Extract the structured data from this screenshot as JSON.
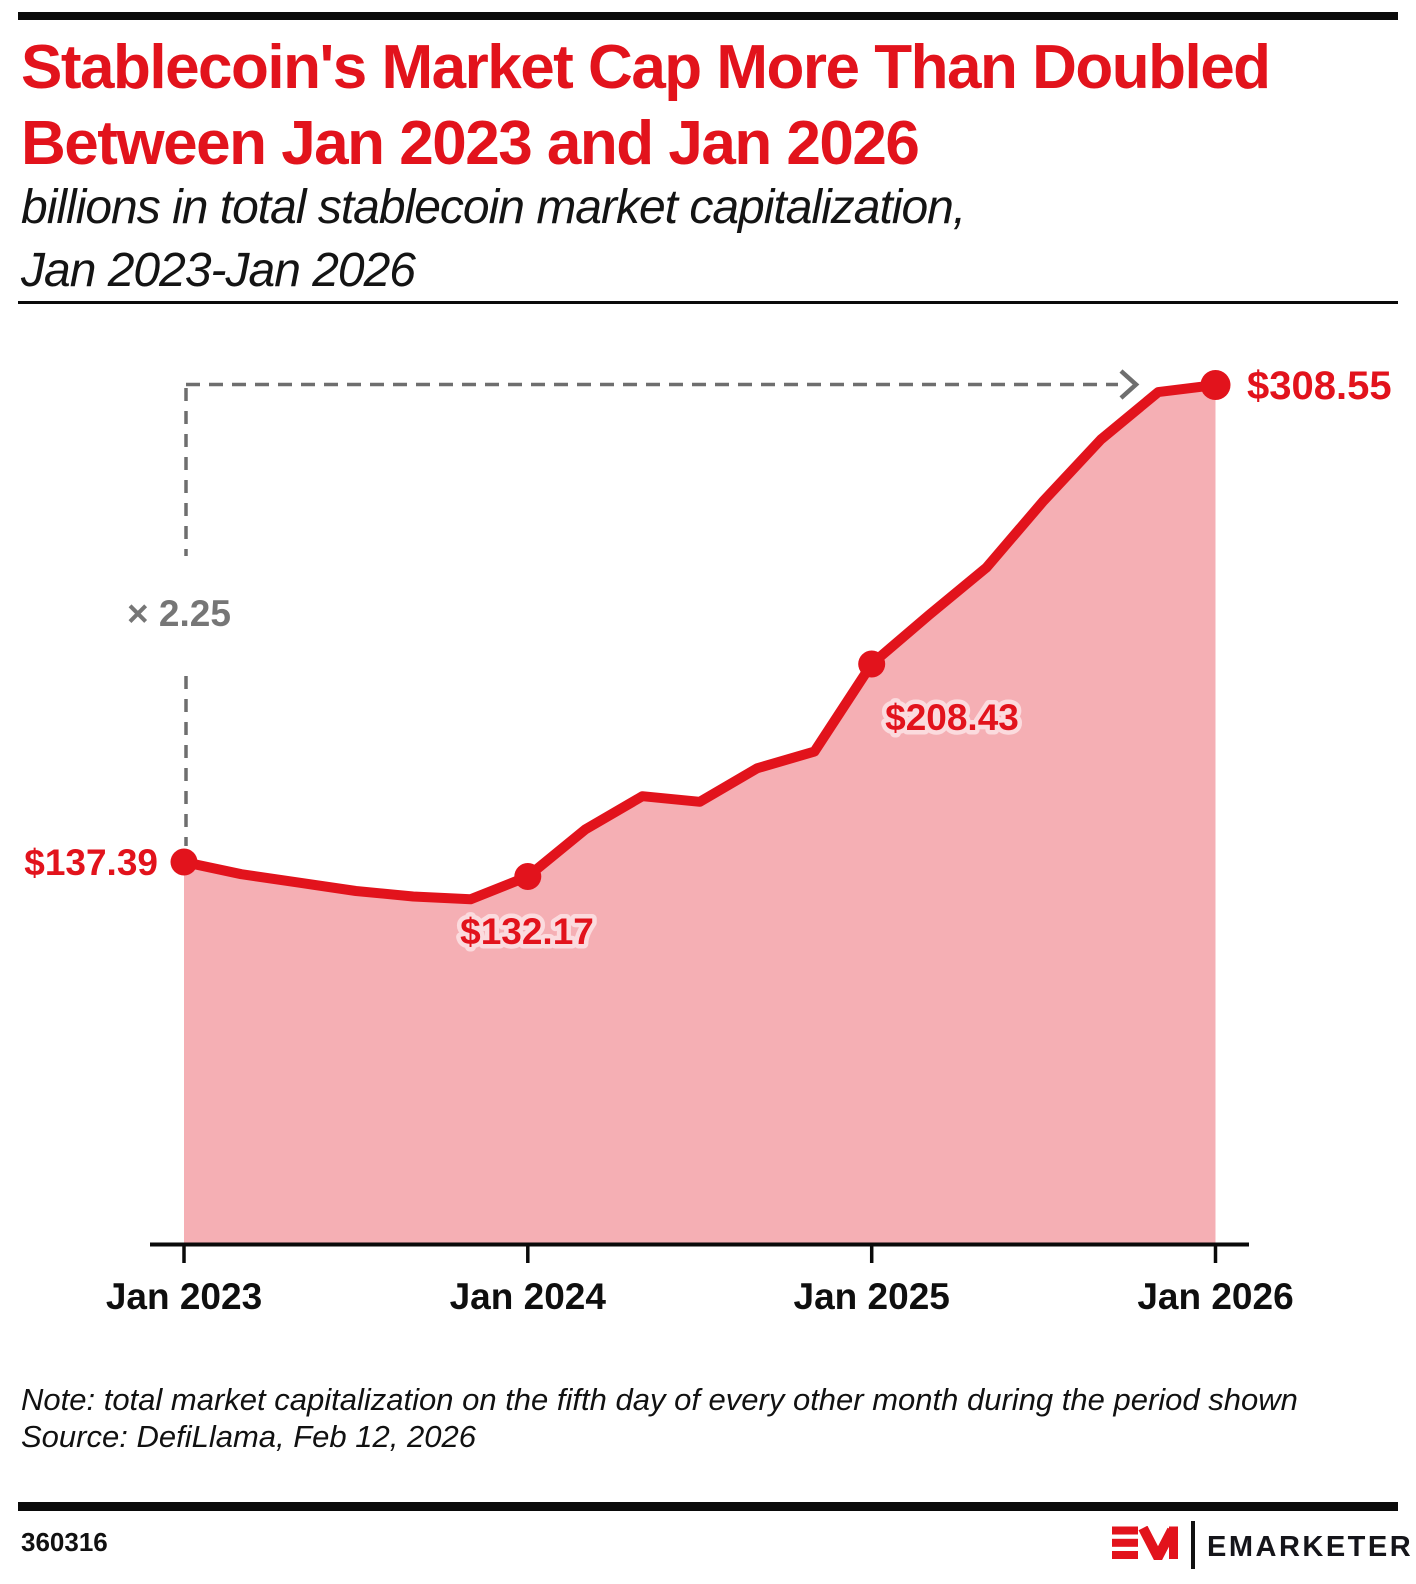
{
  "header": {
    "title_line1": "Stablecoin's Market Cap More Than Doubled",
    "title_line2": "Between Jan 2023 and Jan 2026",
    "subtitle_line1": "billions in total stablecoin market capitalization,",
    "subtitle_line2": "Jan 2023-Jan 2026"
  },
  "chart_data": {
    "type": "area",
    "title": "Stablecoin's Market Cap More Than Doubled Between Jan 2023 and Jan 2026",
    "subtitle": "billions in total stablecoin market capitalization, Jan 2023-Jan 2026",
    "unit": "USD billions",
    "grid": false,
    "ylim": [
      0,
      320
    ],
    "x": [
      "Jan 2023",
      "Mar 2023",
      "May 2023",
      "Jul 2023",
      "Sep 2023",
      "Nov 2023",
      "Jan 2024",
      "Mar 2024",
      "May 2024",
      "Jul 2024",
      "Sep 2024",
      "Nov 2024",
      "Jan 2025",
      "Mar 2025",
      "May 2025",
      "Jul 2025",
      "Sep 2025",
      "Nov 2025",
      "Jan 2026"
    ],
    "values": [
      137.39,
      133,
      130,
      127,
      125,
      124,
      132.17,
      149,
      161,
      159,
      171,
      177,
      208.43,
      226,
      243,
      267,
      289,
      306,
      308.55
    ],
    "x_tick_labels": [
      "Jan 2023",
      "Jan 2024",
      "Jan 2025",
      "Jan 2026"
    ],
    "tick_indices": [
      0,
      6,
      12,
      18
    ],
    "highlighted_points": [
      {
        "index": 0,
        "x": "Jan 2023",
        "value": 137.39,
        "label": "$137.39"
      },
      {
        "index": 6,
        "x": "Jan 2024",
        "value": 132.17,
        "label": "$132.17"
      },
      {
        "index": 12,
        "x": "Jan 2025",
        "value": 208.43,
        "label": "$208.43"
      },
      {
        "index": 18,
        "x": "Jan 2026",
        "value": 308.55,
        "label": "$308.55"
      }
    ],
    "annotation": {
      "label": "× 2.25"
    },
    "colors": {
      "line": "#E2131C",
      "fill": "#F5AFB4",
      "label_outline": "#FBDBDE",
      "annotation_gray": "#6E6E6E",
      "axis": "#0a0a0a"
    }
  },
  "footnote": {
    "note": "Note: total market capitalization on the fifth day of every other month during the period shown",
    "source": "Source: DefiLlama, Feb 12, 2026"
  },
  "footer": {
    "chart_id": "360316",
    "brand_text": "EMARKETER"
  }
}
